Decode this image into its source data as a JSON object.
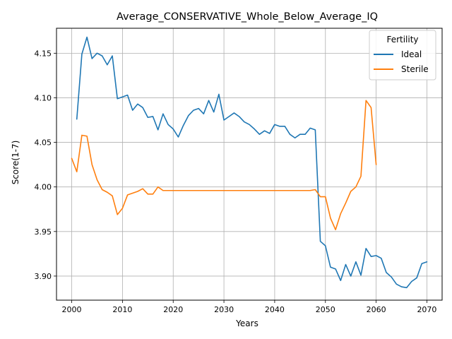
{
  "chart_data": {
    "type": "line",
    "title": "Average_CONSERVATIVE_Whole_Below_Average_IQ",
    "xlabel": "Years",
    "ylabel": "Score(1-7)",
    "xlim": [
      1997,
      2073
    ],
    "ylim": [
      3.873,
      4.178
    ],
    "xticks": [
      2000,
      2010,
      2020,
      2030,
      2040,
      2050,
      2060,
      2070
    ],
    "yticks": [
      3.9,
      3.95,
      4.0,
      4.05,
      4.1,
      4.15
    ],
    "xtick_labels": [
      "2000",
      "2010",
      "2020",
      "2030",
      "2040",
      "2050",
      "2060",
      "2070"
    ],
    "ytick_labels": [
      "3.90",
      "3.95",
      "4.00",
      "4.05",
      "4.10",
      "4.15"
    ],
    "grid": true,
    "legend": {
      "title": "Fertility",
      "placement": "top-right"
    },
    "series": [
      {
        "name": "Ideal",
        "color": "#1f77b4",
        "x": [
          2001,
          2002,
          2003,
          2004,
          2005,
          2006,
          2007,
          2008,
          2009,
          2010,
          2011,
          2012,
          2013,
          2014,
          2015,
          2016,
          2017,
          2018,
          2019,
          2020,
          2021,
          2022,
          2023,
          2024,
          2025,
          2026,
          2027,
          2028,
          2029,
          2030,
          2031,
          2032,
          2033,
          2034,
          2035,
          2036,
          2037,
          2038,
          2039,
          2040,
          2041,
          2042,
          2043,
          2044,
          2045,
          2046,
          2047,
          2048,
          2049,
          2050,
          2051,
          2052,
          2053,
          2054,
          2055,
          2056,
          2057,
          2058,
          2059,
          2060,
          2061,
          2062,
          2063,
          2064,
          2065,
          2066,
          2067,
          2068,
          2069,
          2070
        ],
        "values": [
          4.076,
          4.149,
          4.168,
          4.144,
          4.15,
          4.147,
          4.137,
          4.147,
          4.099,
          4.101,
          4.103,
          4.086,
          4.093,
          4.089,
          4.078,
          4.079,
          4.064,
          4.082,
          4.07,
          4.065,
          4.056,
          4.069,
          4.08,
          4.086,
          4.088,
          4.082,
          4.097,
          4.084,
          4.104,
          4.075,
          4.079,
          4.083,
          4.079,
          4.073,
          4.07,
          4.065,
          4.059,
          4.063,
          4.06,
          4.07,
          4.068,
          4.068,
          4.059,
          4.055,
          4.059,
          4.059,
          4.066,
          4.064,
          3.939,
          3.934,
          3.91,
          3.908,
          3.895,
          3.913,
          3.9,
          3.916,
          3.901,
          3.931,
          3.922,
          3.923,
          3.92,
          3.904,
          3.899,
          3.891,
          3.888,
          3.887,
          3.894,
          3.898,
          3.914,
          3.916
        ]
      },
      {
        "name": "Sterile",
        "color": "#ff7f0e",
        "x": [
          2000,
          2001,
          2002,
          2003,
          2004,
          2005,
          2006,
          2007,
          2008,
          2009,
          2010,
          2011,
          2012,
          2013,
          2014,
          2015,
          2016,
          2017,
          2018,
          2019,
          2020,
          2021,
          2022,
          2023,
          2024,
          2025,
          2026,
          2027,
          2028,
          2029,
          2030,
          2031,
          2032,
          2033,
          2034,
          2035,
          2036,
          2037,
          2038,
          2039,
          2040,
          2041,
          2042,
          2043,
          2044,
          2045,
          2046,
          2047,
          2048,
          2049,
          2050,
          2051,
          2052,
          2053,
          2054,
          2055,
          2056,
          2057,
          2058,
          2059,
          2060
        ],
        "values": [
          4.032,
          4.017,
          4.058,
          4.057,
          4.025,
          4.008,
          3.997,
          3.994,
          3.99,
          3.969,
          3.976,
          3.991,
          3.993,
          3.995,
          3.998,
          3.992,
          3.992,
          4.0,
          3.996,
          3.996,
          3.996,
          3.996,
          3.996,
          3.996,
          3.996,
          3.996,
          3.996,
          3.996,
          3.996,
          3.996,
          3.996,
          3.996,
          3.996,
          3.996,
          3.996,
          3.996,
          3.996,
          3.996,
          3.996,
          3.996,
          3.996,
          3.996,
          3.996,
          3.996,
          3.996,
          3.996,
          3.996,
          3.996,
          3.997,
          3.989,
          3.989,
          3.965,
          3.952,
          3.97,
          3.982,
          3.995,
          4.0,
          4.012,
          4.097,
          4.089,
          4.025
        ]
      }
    ]
  }
}
